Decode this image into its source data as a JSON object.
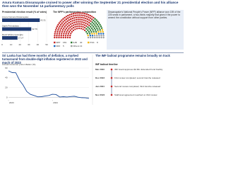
{
  "header": {
    "title": "Anura Kumara Dissanayake cruised to power after winning the September 21 presidential election and his alliance then won the November 14 parliamentary polls"
  },
  "chart_data": [
    {
      "type": "bar",
      "title": "Presidential election result (% of votes)",
      "categories": [
        "Anura Kumara Dissanayake",
        "Sajith Premadasa",
        "Ranil Wickremesinghe"
      ],
      "values": [
        42.31,
        32.76,
        17.27
      ],
      "color": "#1f3b73",
      "xlim": [
        0,
        50
      ],
      "xticks": [
        0,
        10,
        20,
        30,
        40,
        50
      ],
      "grid": true
    },
    {
      "type": "parliament",
      "title": "The NPP's parliamentary composition",
      "categories": [
        "NPP",
        "SJB",
        "ITAK",
        "NDF",
        "Others"
      ],
      "values": [
        159,
        40,
        8,
        5,
        13
      ],
      "colors": [
        "#c62828",
        "#2e7d32",
        "#f2b705",
        "#1565c0",
        "#9e9e9e"
      ],
      "note": "Dissanayake's National People's Power (NPP) alliance won 159 of the 225 seats in parliament, a two-thirds majority that gives it the power to amend the constitution without support from other parties."
    },
    {
      "type": "line",
      "title": "Sri Lanka has had three months of deflation, a marked turnaround from double-digit inflation registered in 2022 and much of 2023",
      "subtitle": "Annual consumer price inflation (%)",
      "categories": [
        "2023",
        null,
        null,
        null,
        null,
        null,
        null,
        null,
        null,
        null,
        null,
        null,
        "2024",
        null,
        null,
        null,
        null,
        null,
        null,
        null,
        null,
        null,
        null
      ],
      "values": [
        54.2,
        50.6,
        50.3,
        35.3,
        25.2,
        12.0,
        6.3,
        4.0,
        1.3,
        1.5,
        2.8,
        4.0,
        6.4,
        5.9,
        0.9,
        1.5,
        0.9,
        1.7,
        2.4,
        0.5,
        -0.5,
        -0.8,
        -2.1
      ],
      "color": "#1f4e9c",
      "ylim": [
        -5,
        60
      ],
      "yticks": [
        0,
        20,
        40,
        60
      ],
      "grid": true
    }
  ],
  "timeline": {
    "section_title": "The IMF bailout programme remains broadly on track",
    "title": "IMF bailout timeline",
    "events": [
      {
        "date": "Mar 2023",
        "text": "IMF board approves $2.9bn Extended Fund Facility"
      },
      {
        "date": "Dec 2023",
        "text": "First review completed; second tranche released"
      },
      {
        "date": "Jun 2024",
        "text": "Second review completed; third tranche released"
      },
      {
        "date": "Nov 2024",
        "text": "Staff-level agreement reached on third review"
      }
    ]
  }
}
